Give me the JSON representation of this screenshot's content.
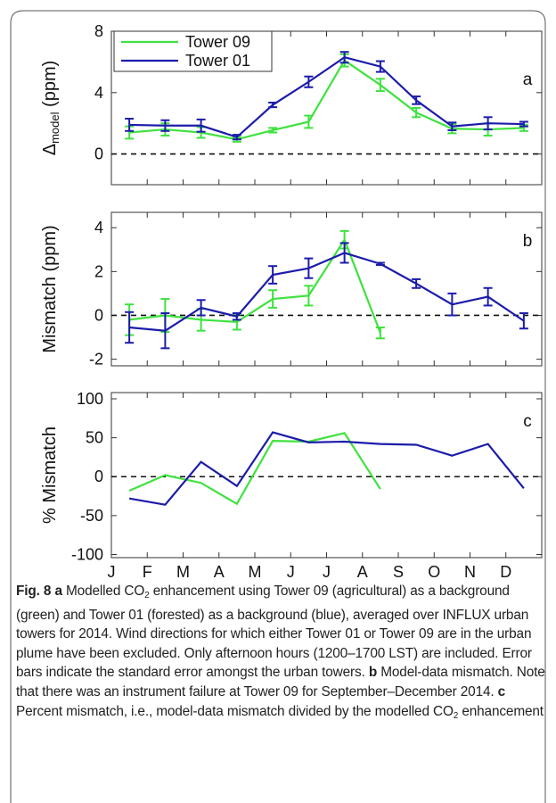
{
  "chart_data": [
    {
      "type": "line",
      "panel_label": "a",
      "ylabel": [
        "Δ",
        "model",
        " (ppm)"
      ],
      "x": [
        1.5,
        2.5,
        3.5,
        4.5,
        5.5,
        6.5,
        7.5,
        8.5,
        9.5,
        10.5,
        11.5,
        12.5
      ],
      "xlim": [
        1,
        13
      ],
      "xticks": [
        1,
        2,
        3,
        4,
        5,
        6,
        7,
        8,
        9,
        10,
        11,
        12
      ],
      "ylim": [
        -2,
        8
      ],
      "yticks": [
        0,
        4,
        8
      ],
      "reference_line": 0,
      "legend": "upper left",
      "series": [
        {
          "name": "Tower 09",
          "color": "#3fe23f",
          "values": [
            1.4,
            1.6,
            1.4,
            0.95,
            1.55,
            2.1,
            6.1,
            4.5,
            2.7,
            1.65,
            1.6,
            1.7
          ],
          "errors": [
            0.4,
            0.4,
            0.35,
            0.15,
            0.15,
            0.4,
            0.4,
            0.4,
            0.3,
            0.3,
            0.4,
            0.2
          ]
        },
        {
          "name": "Tower 01",
          "color": "#1c1cab",
          "values": [
            1.9,
            1.85,
            1.85,
            1.1,
            3.2,
            4.7,
            6.3,
            5.7,
            3.5,
            1.8,
            2.0,
            1.95
          ],
          "errors": [
            0.4,
            0.35,
            0.4,
            0.15,
            0.15,
            0.35,
            0.35,
            0.35,
            0.25,
            0.25,
            0.4,
            0.15
          ]
        }
      ]
    },
    {
      "type": "line",
      "panel_label": "b",
      "ylabel": [
        "Mismatch (ppm)"
      ],
      "x": [
        1.5,
        2.5,
        3.5,
        4.5,
        5.5,
        6.5,
        7.5,
        8.5,
        9.5,
        10.5,
        11.5,
        12.5
      ],
      "xlim": [
        1,
        13
      ],
      "xticks": [
        1,
        2,
        3,
        4,
        5,
        6,
        7,
        8,
        9,
        10,
        11,
        12
      ],
      "ylim": [
        -2.3,
        4.7
      ],
      "yticks": [
        -2,
        0,
        2,
        4
      ],
      "reference_line": 0,
      "series": [
        {
          "color": "#3fe23f",
          "values": [
            -0.2,
            0.0,
            -0.2,
            -0.3,
            0.75,
            0.9,
            3.45,
            -0.8,
            null,
            null,
            null,
            null
          ],
          "errors": [
            0.7,
            0.75,
            0.5,
            0.35,
            0.4,
            0.45,
            0.4,
            0.25,
            null,
            null,
            null,
            null
          ]
        },
        {
          "color": "#1c1cab",
          "values": [
            -0.55,
            -0.7,
            0.35,
            -0.05,
            1.85,
            2.15,
            2.85,
            2.35,
            1.45,
            0.5,
            0.85,
            -0.25
          ],
          "errors": [
            0.7,
            0.8,
            0.35,
            0.15,
            0.4,
            0.45,
            0.45,
            0.05,
            0.2,
            0.5,
            0.4,
            0.35
          ]
        }
      ]
    },
    {
      "type": "line",
      "panel_label": "c",
      "ylabel": [
        "% Mismatch"
      ],
      "x": [
        1.5,
        2.5,
        3.5,
        4.5,
        5.5,
        6.5,
        7.5,
        8.5,
        9.5,
        10.5,
        11.5,
        12.5
      ],
      "xlim": [
        1,
        13
      ],
      "xticks": [
        {
          "value": 1,
          "label": "J"
        },
        {
          "value": 2,
          "label": "F"
        },
        {
          "value": 3,
          "label": "M"
        },
        {
          "value": 4,
          "label": "A"
        },
        {
          "value": 5,
          "label": "M"
        },
        {
          "value": 6,
          "label": "J"
        },
        {
          "value": 7,
          "label": "J"
        },
        {
          "value": 8,
          "label": "A"
        },
        {
          "value": 9,
          "label": "S"
        },
        {
          "value": 10,
          "label": "O"
        },
        {
          "value": 11,
          "label": "N"
        },
        {
          "value": 12,
          "label": "D"
        }
      ],
      "ylim": [
        -104,
        108
      ],
      "yticks": [
        -100,
        -50,
        0,
        50,
        100
      ],
      "reference_line": 0,
      "series": [
        {
          "color": "#3fe23f",
          "values": [
            -18,
            2,
            -8,
            -35,
            46,
            45,
            56,
            -16,
            null,
            null,
            null,
            null
          ]
        },
        {
          "color": "#1c1cab",
          "values": [
            -28,
            -36,
            19,
            -12,
            57,
            44,
            45,
            42,
            41,
            27,
            42,
            -15
          ]
        }
      ]
    }
  ],
  "caption": {
    "runs": [
      {
        "text": "Fig. 8",
        "style": "bold"
      },
      {
        "text": " ",
        "style": "normal"
      },
      {
        "text": "a",
        "style": "bold"
      },
      {
        "text": " Modelled CO",
        "style": "normal"
      },
      {
        "text": "2",
        "style": "sub"
      },
      {
        "text": " enhancement using Tower 09 (agricultural) as a background (green) and Tower 01 (forested) as a background (blue), averaged over INFLUX urban towers for 2014. Wind directions for which either Tower 01 or Tower 09 are in the urban plume have been excluded. Only afternoon hours (1200–1700 LST) are included. Error bars indicate the standard error amongst the urban towers. ",
        "style": "normal"
      },
      {
        "text": "b",
        "style": "bold"
      },
      {
        "text": " Model-data mismatch. Note that there was an instrument failure at Tower 09 for September–December 2014. ",
        "style": "normal"
      },
      {
        "text": "c",
        "style": "bold"
      },
      {
        "text": " Percent mismatch, i.e., model-data mismatch divided by the modelled CO",
        "style": "normal"
      },
      {
        "text": "2",
        "style": "sub"
      },
      {
        "text": " enhancement",
        "style": "normal"
      }
    ]
  }
}
